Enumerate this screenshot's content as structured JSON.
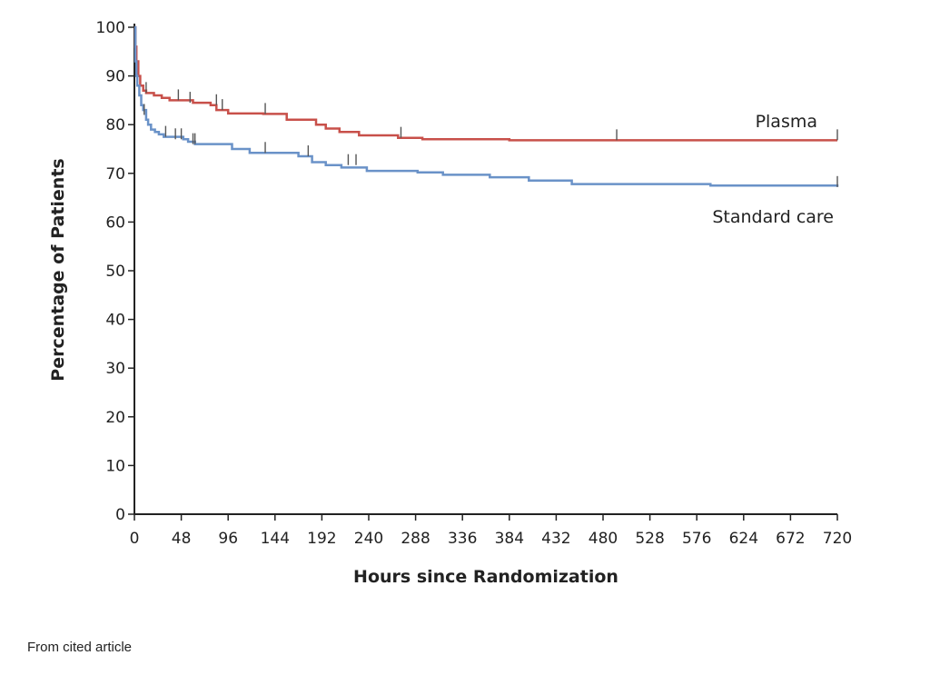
{
  "caption": "From cited article",
  "chart_data": {
    "type": "line",
    "title": "",
    "xlabel": "Hours since Randomization",
    "ylabel": "Percentage of Patients",
    "xlim": [
      0,
      720
    ],
    "ylim": [
      0,
      100
    ],
    "xticks": [
      0,
      48,
      96,
      144,
      192,
      240,
      288,
      336,
      384,
      432,
      480,
      528,
      576,
      624,
      672,
      720
    ],
    "yticks": [
      0,
      10,
      20,
      30,
      40,
      50,
      60,
      70,
      80,
      90,
      100
    ],
    "grid": false,
    "legend": "labels at right end of lines",
    "series": [
      {
        "name": "Plasma",
        "color": "#c8504a",
        "step": true,
        "x": [
          0,
          1,
          2,
          4,
          6,
          9,
          12,
          20,
          28,
          36,
          60,
          78,
          84,
          96,
          132,
          156,
          186,
          196,
          210,
          230,
          270,
          295,
          384,
          720
        ],
        "y": [
          100,
          96,
          93,
          90,
          88,
          87,
          86.5,
          86,
          85.5,
          85,
          84.5,
          84,
          83,
          82.3,
          82.2,
          81,
          80,
          79.2,
          78.5,
          77.8,
          77.3,
          77,
          76.8,
          76.8
        ],
        "censor_x": [
          12,
          45,
          57,
          84,
          90,
          134,
          273,
          494,
          720
        ],
        "censor_y": [
          86.5,
          85,
          84.5,
          84,
          83,
          82.2,
          77.3,
          76.8,
          76.8
        ]
      },
      {
        "name": "Standard care",
        "color": "#6a92c8",
        "step": true,
        "x": [
          0,
          1,
          2,
          3,
          5,
          7,
          9,
          12,
          14,
          17,
          21,
          25,
          30,
          50,
          55,
          62,
          100,
          118,
          168,
          182,
          196,
          212,
          238,
          290,
          316,
          364,
          404,
          448,
          590,
          720
        ],
        "y": [
          100,
          93,
          90,
          88,
          86,
          84,
          83,
          81,
          80,
          79,
          78.5,
          78,
          77.5,
          77,
          76.5,
          76,
          75,
          74.2,
          73.5,
          72.3,
          71.7,
          71.2,
          70.5,
          70.2,
          69.7,
          69.2,
          68.5,
          67.8,
          67.5,
          67.2
        ],
        "censor_x": [
          10,
          32,
          42,
          48,
          60,
          62,
          134,
          178,
          219,
          227,
          720
        ],
        "censor_y": [
          82,
          77.5,
          77,
          77,
          76,
          76,
          74.2,
          73.5,
          71.7,
          71.7,
          67.2
        ]
      }
    ]
  }
}
